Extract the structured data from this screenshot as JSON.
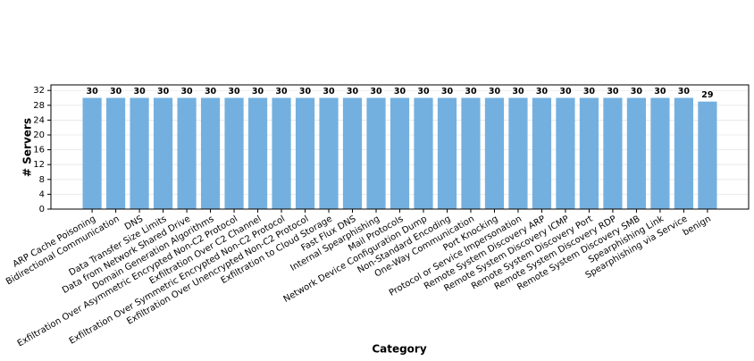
{
  "chart_data": {
    "type": "bar",
    "x_label": "Category",
    "y_label": "# Servers",
    "categories": [
      "ARP Cache Poisoning",
      "Bidirectional Communication",
      "DNS",
      "Data Transfer Size Limits",
      "Data from Network Shared Drive",
      "Domain Generation Algorithms",
      "Exfiltration Over Asymmetric Encrypted Non-C2 Protocol",
      "Exfiltration Over C2 Channel",
      "Exfiltration Over Symmetric Encrypted Non-C2 Protocol",
      "Exfiltration Over Unencrypted Non-C2 Protocol",
      "Exfiltration to Cloud Storage",
      "Fast Flux DNS",
      "Internal Spearphishing",
      "Mail Protocols",
      "Network Device Configuration Dump",
      "Non-Standard Encoding",
      "One-Way Communication",
      "Port Knocking",
      "Protocol or Service Impersonation",
      "Remote System Discovery ARP",
      "Remote System Discovery ICMP",
      "Remote System Discovery Port",
      "Remote System Discovery RDP",
      "Remote System Discovery SMB",
      "Spearphishing Link",
      "Spearphishing via Service",
      "benign"
    ],
    "values": [
      30,
      30,
      30,
      30,
      30,
      30,
      30,
      30,
      30,
      30,
      30,
      30,
      30,
      30,
      30,
      30,
      30,
      30,
      30,
      30,
      30,
      30,
      30,
      30,
      30,
      30,
      29
    ],
    "color": "#74b0df",
    "ylim": [
      0,
      33.5
    ],
    "yticks": [
      0,
      4,
      8,
      12,
      16,
      20,
      24,
      28,
      32
    ],
    "grid": true
  }
}
